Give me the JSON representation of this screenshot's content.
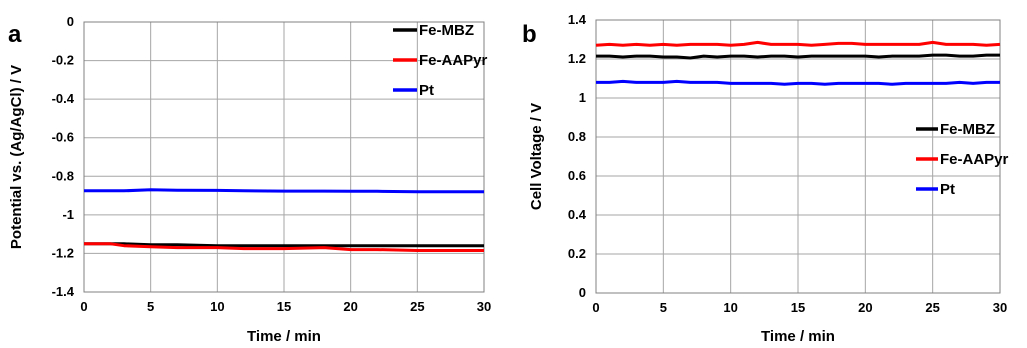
{
  "chart_data": [
    {
      "type": "line",
      "panel": "a",
      "xlabel": "Time / min",
      "ylabel": "Potential vs. (Ag/AgCl) / V",
      "xlim": [
        0,
        30
      ],
      "ylim": [
        -1.4,
        0
      ],
      "xticks": [
        "0",
        "5",
        "10",
        "15",
        "20",
        "25",
        "30"
      ],
      "yticks": [
        "0",
        "-0.2",
        "-0.4",
        "-0.6",
        "-0.8",
        "-1",
        "-1.2",
        "-1.4"
      ],
      "grid": true,
      "legend_position": "top-right",
      "x": [
        0,
        2,
        3,
        5,
        7,
        10,
        12,
        15,
        18,
        20,
        22,
        25,
        28,
        30
      ],
      "series": [
        {
          "name": "Fe-MBZ",
          "color": "#000000",
          "values": [
            -1.15,
            -1.15,
            -1.15,
            -1.155,
            -1.155,
            -1.16,
            -1.16,
            -1.16,
            -1.16,
            -1.16,
            -1.16,
            -1.16,
            -1.16,
            -1.16
          ]
        },
        {
          "name": "Fe-AAPyr",
          "color": "#ff0000",
          "values": [
            -1.15,
            -1.15,
            -1.16,
            -1.165,
            -1.17,
            -1.17,
            -1.175,
            -1.175,
            -1.17,
            -1.18,
            -1.18,
            -1.185,
            -1.185,
            -1.185
          ]
        },
        {
          "name": "Pt",
          "color": "#0000ff",
          "values": [
            -0.875,
            -0.875,
            -0.875,
            -0.87,
            -0.872,
            -0.873,
            -0.875,
            -0.877,
            -0.877,
            -0.878,
            -0.878,
            -0.88,
            -0.88,
            -0.88
          ]
        }
      ]
    },
    {
      "type": "line",
      "panel": "b",
      "xlabel": "Time / min",
      "ylabel": "Cell Voltage / V",
      "xlim": [
        0,
        30
      ],
      "ylim": [
        0,
        1.4
      ],
      "xticks": [
        "0",
        "5",
        "10",
        "15",
        "20",
        "25",
        "30"
      ],
      "yticks": [
        "1.4",
        "1.2",
        "1",
        "0.8",
        "0.6",
        "0.4",
        "0.2",
        "0"
      ],
      "grid": true,
      "legend_position": "middle-right",
      "x": [
        0,
        1,
        2,
        3,
        4,
        5,
        6,
        7,
        8,
        9,
        10,
        11,
        12,
        13,
        14,
        15,
        16,
        17,
        18,
        19,
        20,
        21,
        22,
        23,
        24,
        25,
        26,
        27,
        28,
        29,
        30
      ],
      "series": [
        {
          "name": "Fe-MBZ",
          "color": "#000000",
          "values": [
            1.215,
            1.215,
            1.21,
            1.215,
            1.215,
            1.21,
            1.21,
            1.205,
            1.215,
            1.21,
            1.215,
            1.215,
            1.21,
            1.215,
            1.215,
            1.21,
            1.215,
            1.215,
            1.215,
            1.215,
            1.215,
            1.21,
            1.215,
            1.215,
            1.215,
            1.22,
            1.22,
            1.215,
            1.215,
            1.22,
            1.22
          ]
        },
        {
          "name": "Fe-AAPyr",
          "color": "#ff0000",
          "values": [
            1.27,
            1.275,
            1.27,
            1.275,
            1.27,
            1.275,
            1.27,
            1.275,
            1.275,
            1.275,
            1.27,
            1.275,
            1.285,
            1.275,
            1.275,
            1.275,
            1.27,
            1.275,
            1.28,
            1.28,
            1.275,
            1.275,
            1.275,
            1.275,
            1.275,
            1.285,
            1.275,
            1.275,
            1.275,
            1.27,
            1.275
          ]
        },
        {
          "name": "Pt",
          "color": "#0000ff",
          "values": [
            1.08,
            1.08,
            1.085,
            1.08,
            1.08,
            1.08,
            1.085,
            1.08,
            1.08,
            1.08,
            1.075,
            1.075,
            1.075,
            1.075,
            1.07,
            1.075,
            1.075,
            1.07,
            1.075,
            1.075,
            1.075,
            1.075,
            1.07,
            1.075,
            1.075,
            1.075,
            1.075,
            1.08,
            1.075,
            1.08,
            1.08
          ]
        }
      ]
    }
  ]
}
